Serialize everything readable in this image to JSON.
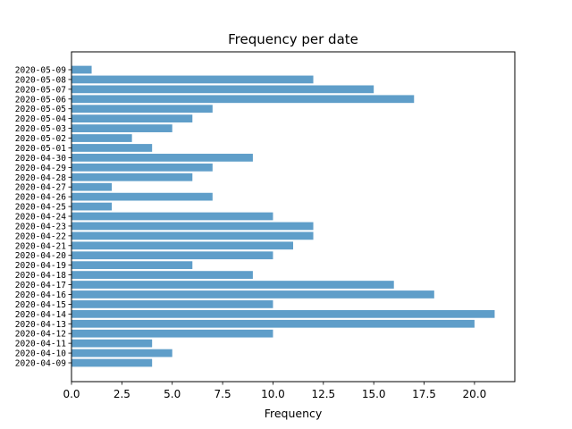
{
  "chart_data": {
    "type": "bar",
    "orientation": "horizontal",
    "title": "Frequency per date",
    "xlabel": "Frequency",
    "ylabel": "",
    "xlim": [
      0,
      22
    ],
    "xticks": [
      "0.0",
      "2.5",
      "5.0",
      "7.5",
      "10.0",
      "12.5",
      "15.0",
      "17.5",
      "20.0"
    ],
    "bar_color": "#5f9ec9",
    "grid": false,
    "categories": [
      "2020-04-09",
      "2020-04-10",
      "2020-04-11",
      "2020-04-12",
      "2020-04-13",
      "2020-04-14",
      "2020-04-15",
      "2020-04-16",
      "2020-04-17",
      "2020-04-18",
      "2020-04-19",
      "2020-04-20",
      "2020-04-21",
      "2020-04-22",
      "2020-04-23",
      "2020-04-24",
      "2020-04-25",
      "2020-04-26",
      "2020-04-27",
      "2020-04-28",
      "2020-04-29",
      "2020-04-30",
      "2020-05-01",
      "2020-05-02",
      "2020-05-03",
      "2020-05-04",
      "2020-05-05",
      "2020-05-06",
      "2020-05-07",
      "2020-05-08",
      "2020-05-09"
    ],
    "values": [
      4,
      5,
      4,
      10,
      20,
      21,
      10,
      18,
      16,
      9,
      6,
      10,
      11,
      12,
      12,
      10,
      2,
      7,
      2,
      6,
      7,
      9,
      4,
      3,
      5,
      6,
      7,
      17,
      15,
      12,
      1
    ]
  }
}
